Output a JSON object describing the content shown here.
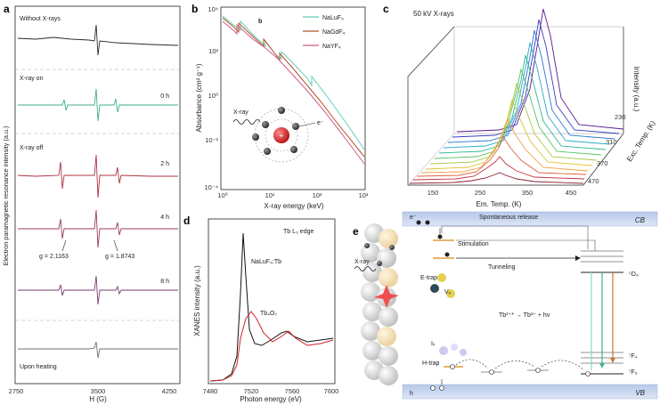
{
  "panels": {
    "a": {
      "label": "a",
      "ylabel": "Electron paramagnetic resonance intensity (a.u.)",
      "xlabel": "H (G)",
      "xticks": [
        "2750",
        "3500",
        "4250"
      ],
      "traces": [
        {
          "label": "Without X-rays",
          "time": "",
          "color": "#2a2a2a"
        },
        {
          "label": "X-ray on",
          "time": "0 h",
          "color": "#3fae8a"
        },
        {
          "label": "X-ray off",
          "time": "2 h",
          "color": "#b03040"
        },
        {
          "label": "",
          "time": "4 h",
          "color": "#9a3c52"
        },
        {
          "label": "",
          "time": "8 h",
          "color": "#7a3a70"
        },
        {
          "label": "Upon heating",
          "time": "",
          "color": "#707070"
        }
      ],
      "annotations": [
        "g = 2.1163",
        "g = 1.8743"
      ]
    },
    "b": {
      "label": "b",
      "inner_label": "b",
      "ylabel": "Absorbance (cm² g⁻¹)",
      "xlabel": "X-ray energy (keV)",
      "yticks": [
        "10⁴",
        "10²",
        "10⁰",
        "10⁻²",
        "10⁻⁴"
      ],
      "xticks": [
        "10⁰",
        "10¹",
        "10²",
        "10³"
      ],
      "legend": [
        {
          "name": "NaLuF₄",
          "color": "#5fcfb8"
        },
        {
          "name": "NaGdF₄",
          "color": "#b3542a"
        },
        {
          "name": "NaYF₄",
          "color": "#cf5a8a"
        }
      ],
      "inset": {
        "xray": "X-ray",
        "electron": "e⁻"
      }
    },
    "c": {
      "label": "c",
      "title": "50 kV X-rays",
      "zlabel": "Intensity (a.u.)",
      "xlabel": "Em. Temp. (K)",
      "ylabel": "Exc. Temp. (K)",
      "xticks": [
        "150",
        "250",
        "350",
        "450"
      ],
      "yticks": [
        "230",
        "310",
        "370",
        "470"
      ]
    },
    "d": {
      "label": "d",
      "title": "Tb L₃ edge",
      "ylabel": "XANES intensity (a.u.)",
      "xlabel": "Photon energy (eV)",
      "xticks": [
        "7480",
        "7520",
        "7560",
        "7600"
      ],
      "series": [
        {
          "name": "NaLuF₄:Tb",
          "color": "#111111"
        },
        {
          "name": "Tb₄O₇",
          "color": "#d0202a"
        }
      ]
    },
    "e": {
      "label": "e",
      "xray": "X-ray",
      "cb": "CB",
      "vb": "VB",
      "electron": "e⁻",
      "hole": "h",
      "spontaneous": "Spontaneous release",
      "stimulation": "Stimulation",
      "tunneling": "Tunneling",
      "etrap": "E-trap",
      "htrap": "H-trap",
      "vf": "Vₓ",
      "ik": "Iₖ",
      "reaction": "Tb³⁺* → Tb³⁺ + hν",
      "level_5d4": "⁵D₄",
      "level_7f4": "⁷F₄",
      "level_7f6": "⁷F₆"
    }
  },
  "colors": {
    "band": "#c9d6ee",
    "band_edge": "#9fb3dc",
    "trap": "#e39a3a"
  }
}
